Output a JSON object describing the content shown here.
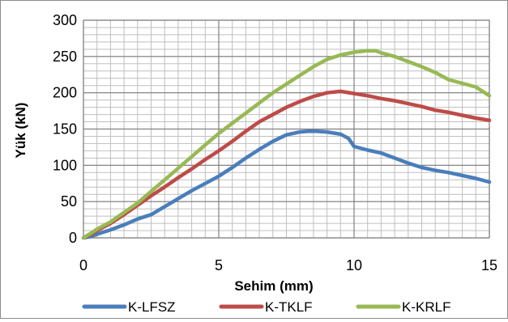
{
  "chart_data": {
    "type": "line",
    "xlabel": "Sehim (mm)",
    "ylabel": "Yük (kN)",
    "xlim": [
      0,
      15
    ],
    "ylim": [
      0,
      300
    ],
    "x_ticks": [
      0,
      5,
      10,
      15
    ],
    "x_tick_labels": [
      "0",
      "5",
      "10",
      "15"
    ],
    "y_ticks": [
      0,
      50,
      100,
      150,
      200,
      250,
      300
    ],
    "y_tick_labels": [
      "0",
      "50",
      "100",
      "150",
      "200",
      "250",
      "300"
    ],
    "minor_x_step": 0.5,
    "minor_y_step": 10,
    "grid": true,
    "legend_position": "bottom",
    "series": [
      {
        "name": "K-LFSZ",
        "color": "#4a7ebb",
        "x": [
          0,
          0.3,
          0.5,
          1,
          1.5,
          2,
          2.5,
          3,
          3.5,
          4,
          4.5,
          5,
          5.5,
          6,
          6.5,
          7,
          7.5,
          8,
          8.3,
          8.6,
          9,
          9.5,
          9.8,
          10,
          10.5,
          11,
          11.5,
          12,
          12.5,
          13,
          13.5,
          14,
          14.5,
          15
        ],
        "y": [
          0,
          2,
          5,
          11,
          18,
          26,
          32,
          43,
          54,
          65,
          75,
          85,
          97,
          110,
          122,
          133,
          142,
          146,
          147,
          147,
          146,
          143,
          137,
          126,
          121,
          117,
          110,
          103,
          97,
          93,
          90,
          86,
          82,
          77
        ]
      },
      {
        "name": "K-TKLF",
        "color": "#be4b48",
        "x": [
          0,
          0.3,
          0.5,
          1,
          1.5,
          2,
          2.5,
          3,
          3.5,
          4,
          4.5,
          5,
          5.5,
          6,
          6.5,
          7,
          7.5,
          8,
          8.5,
          9,
          9.5,
          10,
          10.5,
          11,
          11.5,
          12,
          12.5,
          13,
          13.5,
          14,
          14.5,
          15
        ],
        "y": [
          0,
          5,
          10,
          20,
          32,
          45,
          58,
          70,
          83,
          95,
          108,
          120,
          133,
          147,
          160,
          170,
          180,
          188,
          195,
          200,
          202,
          199,
          196,
          192,
          189,
          185,
          181,
          176,
          173,
          169,
          165,
          162
        ]
      },
      {
        "name": "K-KRLF",
        "color": "#98b954",
        "x": [
          0,
          0.3,
          0.5,
          1,
          1.5,
          2,
          2.5,
          3,
          3.5,
          4,
          4.5,
          5,
          5.5,
          6,
          6.5,
          7,
          7.5,
          8,
          8.5,
          9,
          9.5,
          10,
          10.5,
          10.8,
          11,
          11.5,
          12,
          12.5,
          13,
          13.5,
          14,
          14.5,
          15
        ],
        "y": [
          0,
          7,
          12,
          22,
          35,
          48,
          64,
          80,
          96,
          112,
          128,
          144,
          158,
          172,
          186,
          200,
          212,
          224,
          236,
          246,
          252,
          256,
          258,
          258,
          255,
          250,
          243,
          236,
          228,
          218,
          213,
          208,
          196
        ]
      }
    ]
  }
}
